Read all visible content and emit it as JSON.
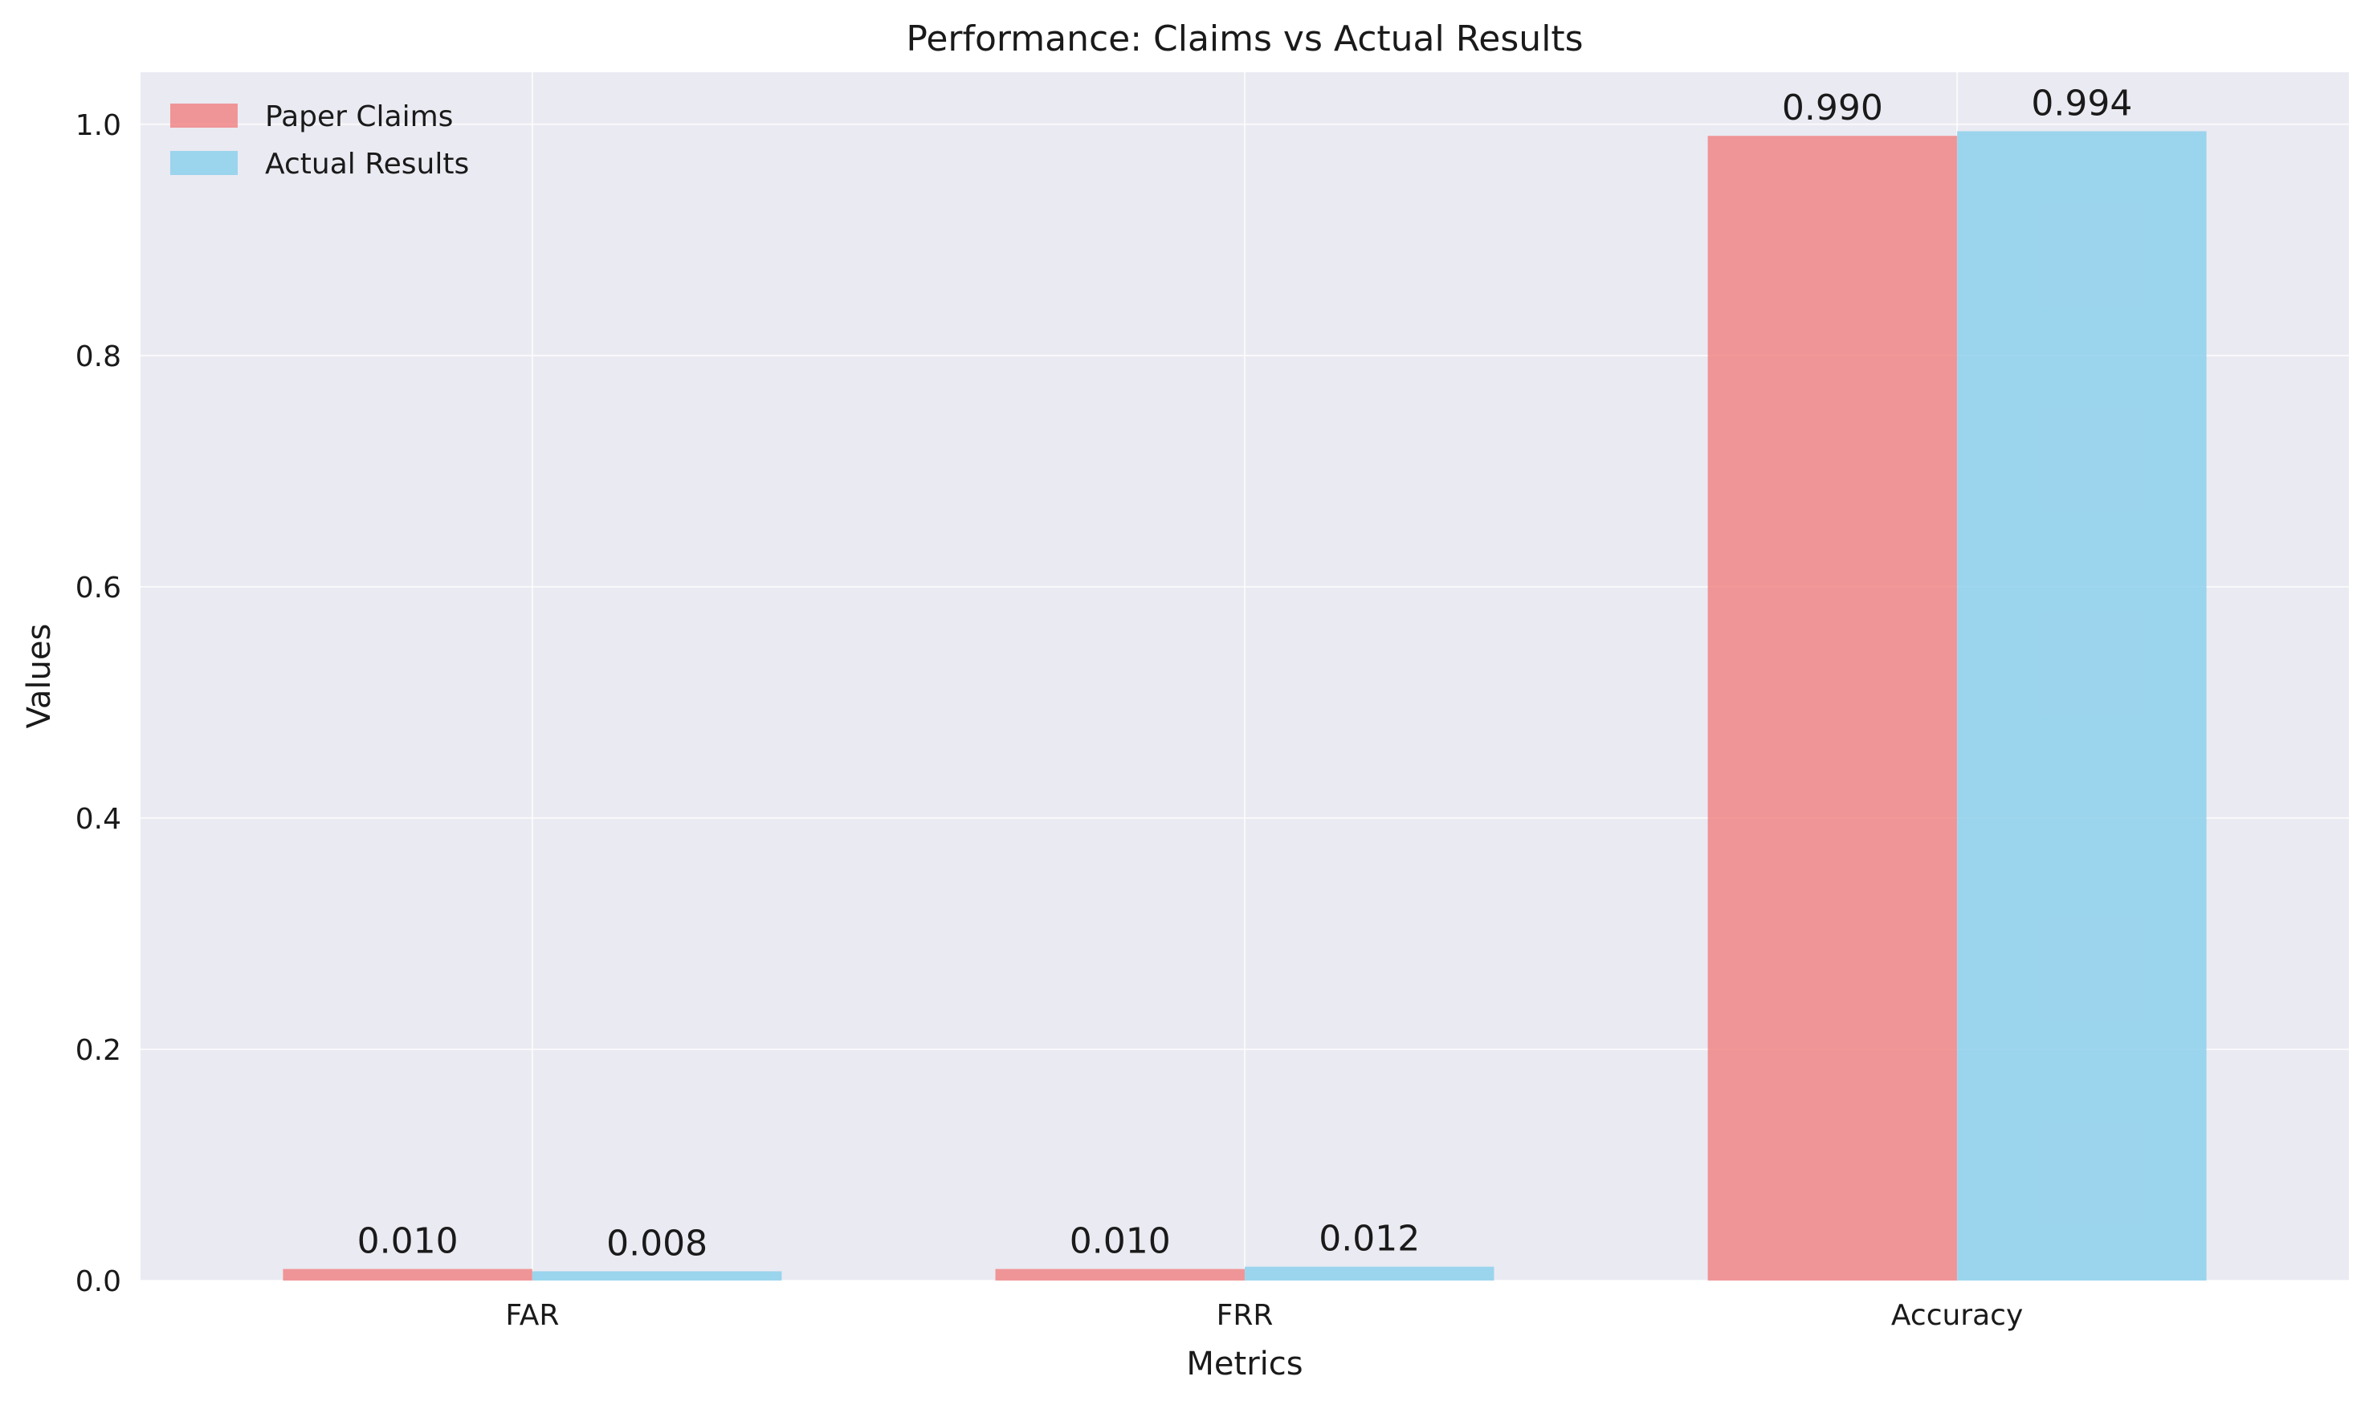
{
  "chart_data": {
    "type": "bar",
    "title": "Performance: Claims vs Actual Results",
    "xlabel": "Metrics",
    "ylabel": "Values",
    "categories": [
      "FAR",
      "FRR",
      "Accuracy"
    ],
    "series": [
      {
        "name": "Paper Claims",
        "values": [
          0.01,
          0.01,
          0.99
        ],
        "labels": [
          "0.010",
          "0.010",
          "0.990"
        ],
        "color": "#f08080"
      },
      {
        "name": "Actual Results",
        "values": [
          0.008,
          0.012,
          0.994
        ],
        "labels": [
          "0.008",
          "0.012",
          "0.994"
        ],
        "color": "#87ceeb"
      }
    ],
    "ylim": [
      0,
      1.045
    ],
    "yticks": [
      "0.0",
      "0.2",
      "0.4",
      "0.6",
      "0.8",
      "1.0"
    ],
    "grid": true,
    "legend_position": "top-left",
    "background": "#eaeaf2",
    "bar_opacity": 0.8
  }
}
